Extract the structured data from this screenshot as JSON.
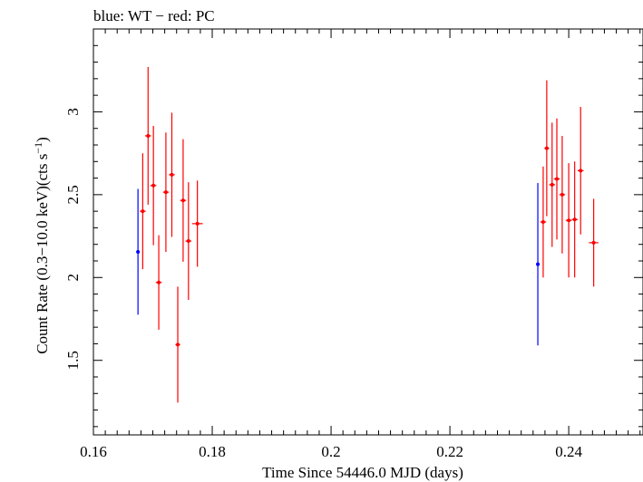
{
  "chart_data": {
    "type": "scatter",
    "title": "blue: WT − red: PC",
    "xlabel": "Time Since 54446.0 MJD (days)",
    "ylabel_main": "Count Rate (0.3−10.0 keV)(cts s",
    "ylabel_sup": "−1",
    "ylabel_end": ")",
    "xlim": [
      0.16,
      0.2525
    ],
    "ylim": [
      1.05,
      3.5
    ],
    "x_ticks_major": [
      0.16,
      0.18,
      0.2,
      0.22,
      0.24
    ],
    "x_tick_labels": [
      "0.16",
      "0.18",
      "0.2",
      "0.22",
      "0.24"
    ],
    "x_minor_step": 0.002,
    "y_ticks_major": [
      1.5,
      2,
      2.5,
      3
    ],
    "y_tick_labels": [
      "1.5",
      "2",
      "2.5",
      "3"
    ],
    "y_minor_step": 0.1,
    "grid": false,
    "series": [
      {
        "color": "#0000ff",
        "points": [
          {
            "x": 0.1675,
            "xerr": 0.0,
            "y": 2.155,
            "ylo": 1.775,
            "yhi": 2.535
          },
          {
            "x": 0.2348,
            "xerr": 0.0,
            "y": 2.08,
            "ylo": 1.59,
            "yhi": 2.57
          }
        ]
      },
      {
        "color": "#ff0000",
        "points": [
          {
            "x": 0.1683,
            "xerr": 0.0005,
            "y": 2.4,
            "ylo": 2.05,
            "yhi": 2.75
          },
          {
            "x": 0.1692,
            "xerr": 0.0005,
            "y": 2.855,
            "ylo": 2.44,
            "yhi": 3.27
          },
          {
            "x": 0.1701,
            "xerr": 0.0005,
            "y": 2.555,
            "ylo": 2.195,
            "yhi": 2.915
          },
          {
            "x": 0.171,
            "xerr": 0.0005,
            "y": 1.97,
            "ylo": 1.685,
            "yhi": 2.255
          },
          {
            "x": 0.1722,
            "xerr": 0.0005,
            "y": 2.515,
            "ylo": 2.155,
            "yhi": 2.875
          },
          {
            "x": 0.1732,
            "xerr": 0.0005,
            "y": 2.62,
            "ylo": 2.245,
            "yhi": 2.995
          },
          {
            "x": 0.1742,
            "xerr": 0.0004,
            "y": 1.595,
            "ylo": 1.245,
            "yhi": 1.945
          },
          {
            "x": 0.1751,
            "xerr": 0.0005,
            "y": 2.465,
            "ylo": 2.095,
            "yhi": 2.835
          },
          {
            "x": 0.176,
            "xerr": 0.0005,
            "y": 2.22,
            "ylo": 1.865,
            "yhi": 2.575
          },
          {
            "x": 0.1775,
            "xerr": 0.0009,
            "y": 2.325,
            "ylo": 2.065,
            "yhi": 2.585
          },
          {
            "x": 0.2357,
            "xerr": 0.0005,
            "y": 2.335,
            "ylo": 2.0,
            "yhi": 2.67
          },
          {
            "x": 0.2363,
            "xerr": 0.0004,
            "y": 2.78,
            "ylo": 2.37,
            "yhi": 3.19
          },
          {
            "x": 0.2372,
            "xerr": 0.0005,
            "y": 2.56,
            "ylo": 2.185,
            "yhi": 2.935
          },
          {
            "x": 0.238,
            "xerr": 0.0005,
            "y": 2.595,
            "ylo": 2.23,
            "yhi": 2.96
          },
          {
            "x": 0.2389,
            "xerr": 0.0005,
            "y": 2.5,
            "ylo": 2.145,
            "yhi": 2.855
          },
          {
            "x": 0.24,
            "xerr": 0.0005,
            "y": 2.345,
            "ylo": 2.0,
            "yhi": 2.69
          },
          {
            "x": 0.241,
            "xerr": 0.0005,
            "y": 2.35,
            "ylo": 2.0,
            "yhi": 2.7
          },
          {
            "x": 0.242,
            "xerr": 0.0005,
            "y": 2.645,
            "ylo": 2.26,
            "yhi": 3.03
          },
          {
            "x": 0.2442,
            "xerr": 0.0008,
            "y": 2.21,
            "ylo": 1.945,
            "yhi": 2.475
          }
        ]
      }
    ]
  }
}
